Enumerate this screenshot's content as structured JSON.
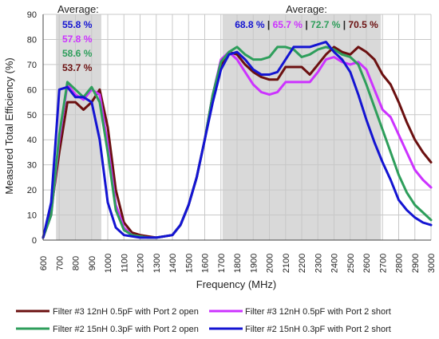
{
  "chart_data": {
    "type": "line",
    "xlabel": "Frequency (MHz)",
    "ylabel": "Measured Total Efficiency (%)",
    "xlim": [
      600,
      3000
    ],
    "ylim": [
      0,
      90
    ],
    "x_ticks": [
      "600",
      "700",
      "800",
      "900",
      "1000",
      "1100",
      "1200",
      "1300",
      "1400",
      "1500",
      "1600",
      "1700",
      "1800",
      "1900",
      "2000",
      "2100",
      "2200",
      "2300",
      "2400",
      "2500",
      "2600",
      "2700",
      "2800",
      "2900",
      "3000"
    ],
    "y_ticks": [
      "0",
      "10",
      "20",
      "30",
      "40",
      "50",
      "60",
      "70",
      "80",
      "90"
    ],
    "grid": true,
    "shaded_bands": [
      [
        680,
        960
      ],
      [
        1710,
        2690
      ]
    ],
    "averages": [
      {
        "title": "Average:",
        "values": [
          {
            "text": "55.8 %",
            "color": "#1414d2"
          },
          {
            "text": "57.8 %",
            "color": "#cc33ff"
          },
          {
            "text": "58.6 %",
            "color": "#2e9e5b"
          },
          {
            "text": "53.7 %",
            "color": "#6b1010"
          }
        ]
      },
      {
        "title": "Average:",
        "values": [
          {
            "text": "68.8 %",
            "color": "#1414d2"
          },
          {
            "text": "65.7 %",
            "color": "#cc33ff"
          },
          {
            "text": "72.7 %",
            "color": "#2e9e5b"
          },
          {
            "text": "70.5 %",
            "color": "#6b1010"
          }
        ],
        "separator": "|"
      }
    ],
    "x": [
      600,
      650,
      700,
      750,
      800,
      850,
      900,
      950,
      1000,
      1050,
      1100,
      1150,
      1200,
      1250,
      1300,
      1350,
      1400,
      1450,
      1500,
      1550,
      1600,
      1650,
      1700,
      1750,
      1800,
      1850,
      1900,
      1950,
      2000,
      2050,
      2100,
      2150,
      2200,
      2250,
      2300,
      2350,
      2400,
      2450,
      2500,
      2550,
      2600,
      2650,
      2700,
      2750,
      2800,
      2850,
      2900,
      2950,
      3000
    ],
    "series": [
      {
        "name": "Filter #3 12nH 0.5pF with Port 2 open",
        "color": "#6b1010",
        "values": [
          1,
          12,
          35,
          55,
          55,
          52,
          55,
          60,
          45,
          20,
          7,
          3,
          2,
          1.5,
          1,
          1.5,
          2,
          6,
          14,
          25,
          40,
          58,
          70,
          75,
          74,
          70,
          67,
          65,
          64,
          64,
          69,
          69,
          69,
          66,
          70,
          74,
          77,
          75,
          74,
          77,
          75,
          72,
          66,
          62,
          55,
          47,
          40,
          35,
          31
        ]
      },
      {
        "name": "Filter #3 12nH 0.5pF with Port 2 short",
        "color": "#cc33ff",
        "values": [
          1,
          10,
          40,
          62,
          58,
          56,
          60,
          58,
          38,
          14,
          5,
          2,
          1.5,
          1,
          1,
          1.5,
          2,
          6,
          14,
          25,
          40,
          58,
          72,
          75,
          72,
          67,
          62,
          59,
          58,
          59,
          63,
          63,
          63,
          63,
          67,
          72,
          73,
          71,
          70,
          71,
          68,
          60,
          52,
          49,
          42,
          35,
          28,
          24,
          21
        ]
      },
      {
        "name": "Filter #2 15nH 0.3pF with Port 2 open",
        "color": "#2e9e5b",
        "values": [
          1,
          10,
          42,
          63,
          60,
          57,
          61,
          55,
          35,
          12,
          4,
          2,
          1.5,
          1,
          1,
          1.5,
          2,
          6,
          14,
          25,
          40,
          58,
          71,
          75,
          77,
          74,
          72,
          72,
          73,
          77,
          77,
          76,
          73,
          74,
          76,
          77,
          76,
          74,
          73,
          70,
          62,
          53,
          44,
          35,
          26,
          19,
          14,
          11,
          8
        ]
      },
      {
        "name": "Filter #2 15nH 0.3pF with Port 2 short",
        "color": "#1414d2",
        "values": [
          1,
          15,
          60,
          61,
          57,
          57,
          55,
          40,
          15,
          5,
          2,
          1.5,
          1,
          1,
          1,
          1.5,
          2,
          6,
          14,
          25,
          40,
          55,
          68,
          74,
          75,
          72,
          68,
          66,
          66,
          67,
          72,
          77,
          77,
          77,
          78,
          79,
          75,
          72,
          67,
          58,
          48,
          39,
          31,
          24,
          16,
          12,
          9,
          7,
          6
        ]
      }
    ]
  }
}
